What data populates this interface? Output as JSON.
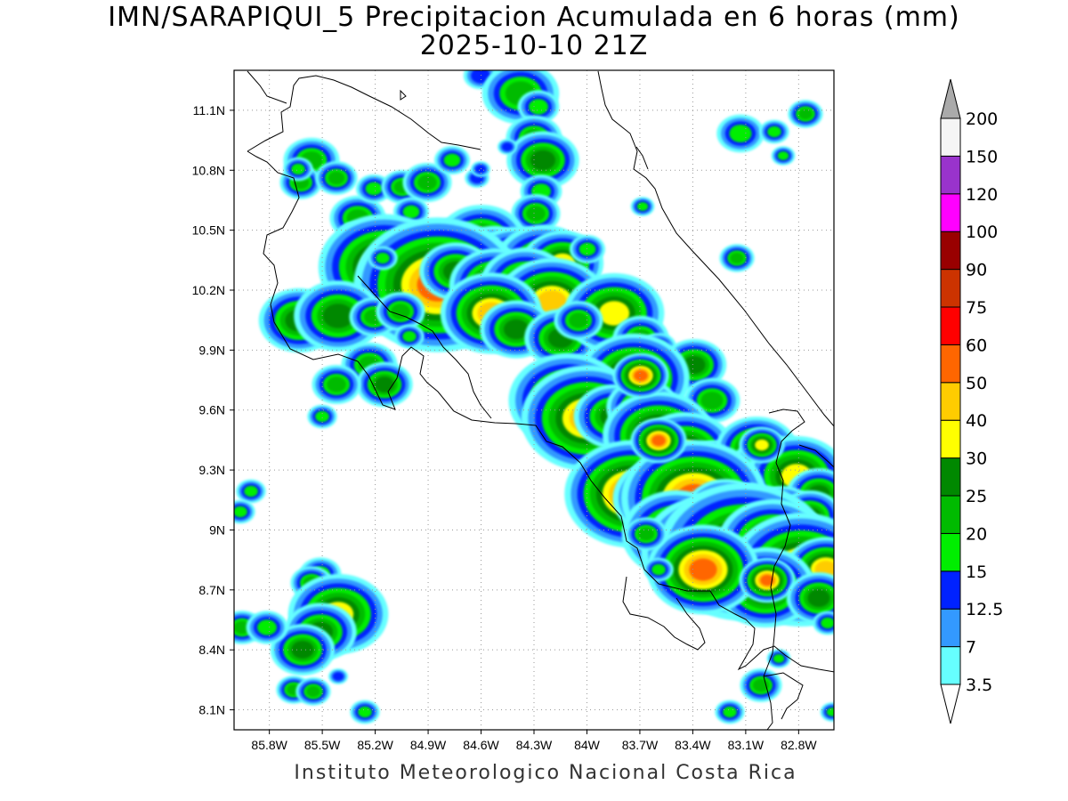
{
  "title": "IMN/SARAPIQUI_5 Precipitacion Acumulada en 6 horas (mm)",
  "subtitle": "2025-10-10 21Z",
  "credit": "Instituto Meteorologico Nacional Costa Rica",
  "map": {
    "lon_range": [
      -86.0,
      -82.6
    ],
    "lat_range": [
      8.0,
      11.3
    ],
    "lon_ticks": [
      {
        "value": -85.8,
        "label": "85.8W"
      },
      {
        "value": -85.5,
        "label": "85.5W"
      },
      {
        "value": -85.2,
        "label": "85.2W"
      },
      {
        "value": -84.9,
        "label": "84.9W"
      },
      {
        "value": -84.6,
        "label": "84.6W"
      },
      {
        "value": -84.3,
        "label": "84.3W"
      },
      {
        "value": -84.0,
        "label": "84W"
      },
      {
        "value": -83.7,
        "label": "83.7W"
      },
      {
        "value": -83.4,
        "label": "83.4W"
      },
      {
        "value": -83.1,
        "label": "83.1W"
      },
      {
        "value": -82.8,
        "label": "82.8W"
      }
    ],
    "lat_ticks": [
      {
        "value": 8.1,
        "label": "8.1N"
      },
      {
        "value": 8.4,
        "label": "8.4N"
      },
      {
        "value": 8.7,
        "label": "8.7N"
      },
      {
        "value": 9.0,
        "label": "9N"
      },
      {
        "value": 9.3,
        "label": "9.3N"
      },
      {
        "value": 9.6,
        "label": "9.6N"
      },
      {
        "value": 9.9,
        "label": "9.9N"
      },
      {
        "value": 10.2,
        "label": "10.2N"
      },
      {
        "value": 10.5,
        "label": "10.5N"
      },
      {
        "value": 10.8,
        "label": "10.8N"
      },
      {
        "value": 11.1,
        "label": "11.1N"
      }
    ],
    "grid": true
  },
  "colorbar": {
    "levels": [
      {
        "label": "3.5",
        "color": "#66ffff"
      },
      {
        "label": "7",
        "color": "#3399ff"
      },
      {
        "label": "12.5",
        "color": "#0022ff"
      },
      {
        "label": "15",
        "color": "#00ee00"
      },
      {
        "label": "20",
        "color": "#00bb00"
      },
      {
        "label": "25",
        "color": "#008800"
      },
      {
        "label": "30",
        "color": "#ffff00"
      },
      {
        "label": "40",
        "color": "#ffcc00"
      },
      {
        "label": "50",
        "color": "#ff6600"
      },
      {
        "label": "60",
        "color": "#ff0000"
      },
      {
        "label": "75",
        "color": "#cc3300"
      },
      {
        "label": "90",
        "color": "#990000"
      },
      {
        "label": "100",
        "color": "#ff00ff"
      },
      {
        "label": "120",
        "color": "#9933cc"
      },
      {
        "label": "150",
        "color": "#f5f5f5"
      },
      {
        "label": "200",
        "color": "#aaaaaa"
      }
    ],
    "under_color": "#ffffff"
  }
}
